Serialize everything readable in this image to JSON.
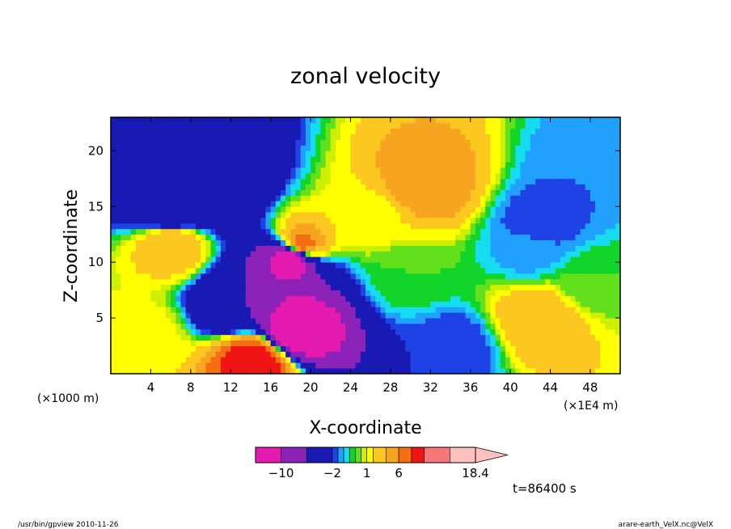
{
  "chart_data": {
    "type": "heatmap",
    "title": "zonal velocity",
    "xlabel": "X-coordinate",
    "ylabel": "Z-coordinate",
    "x_unit": "(×1E4 m)",
    "z_unit": "(×1000 m)",
    "xlim": [
      0,
      51
    ],
    "ylim": [
      0,
      23
    ],
    "x_ticks": [
      4,
      8,
      12,
      16,
      20,
      24,
      28,
      32,
      36,
      40,
      44,
      48
    ],
    "x_tick_labels": [
      "4",
      "8",
      "12",
      "16",
      "20",
      "24",
      "28",
      "32",
      "36",
      "40",
      "44",
      "48"
    ],
    "y_ticks": [
      5,
      10,
      15,
      20
    ],
    "y_tick_labels": [
      "5",
      "10",
      "15",
      "20"
    ],
    "grid": false,
    "colorbar": {
      "levels": [
        -14,
        -10,
        -6,
        -2,
        -1.5,
        -1,
        -0.5,
        0,
        0.5,
        1,
        2,
        4,
        6,
        8,
        10,
        14,
        18.4
      ],
      "colors": [
        "#e41ab1",
        "#8c22b8",
        "#1919b4",
        "#1f42e6",
        "#20a0ff",
        "#16dcf0",
        "#12d52a",
        "#63e01c",
        "#ccf000",
        "#ffff00",
        "#fcc820",
        "#f7a520",
        "#f56e10",
        "#f01414",
        "#f57878",
        "#ffc0c0"
      ],
      "tick_values": [
        -10,
        -2,
        1,
        6,
        18.4
      ],
      "tick_labels": [
        "−10",
        "−2",
        "1",
        "6",
        "18.4"
      ],
      "extend": "max"
    },
    "time_label": "t=86400 s",
    "field_features": [
      {
        "x": 18.2,
        "z": 10.5,
        "value": -14
      },
      {
        "x": 18.4,
        "z": 4.0,
        "value": -14
      },
      {
        "x": 19.0,
        "z": 11.5,
        "value": 8
      },
      {
        "x": 5.8,
        "z": 18.4,
        "value": -6
      },
      {
        "x": 10.0,
        "z": 16.5,
        "value": -6
      },
      {
        "x": 6.0,
        "z": 14.5,
        "value": -6
      },
      {
        "x": 12.8,
        "z": 6.2,
        "value": -6
      },
      {
        "x": 31.5,
        "z": 17.0,
        "value": 6
      },
      {
        "x": 6.0,
        "z": 11.8,
        "value": 4
      },
      {
        "x": 43.0,
        "z": 5.0,
        "value": 4
      },
      {
        "x": 14.5,
        "z": 1.2,
        "value": 10
      },
      {
        "x": 26.0,
        "z": 14.0,
        "value": 1.5
      },
      {
        "x": 42.0,
        "z": 11.0,
        "value": -1.2
      },
      {
        "x": 43.0,
        "z": 13.5,
        "value": -2
      },
      {
        "x": 47.0,
        "z": 18.0,
        "value": -1.5
      },
      {
        "x": 34.5,
        "z": 2.5,
        "value": -2
      },
      {
        "x": 3.0,
        "z": 3.5,
        "value": 1.5
      },
      {
        "x": 30.0,
        "z": 9.0,
        "value": 0
      },
      {
        "x": 48.0,
        "z": 8.0,
        "value": 0
      }
    ]
  },
  "footer": {
    "left": "/usr/bin/gpview   2010-11-26",
    "right": "arare-earth_VelX.nc@VelX"
  }
}
